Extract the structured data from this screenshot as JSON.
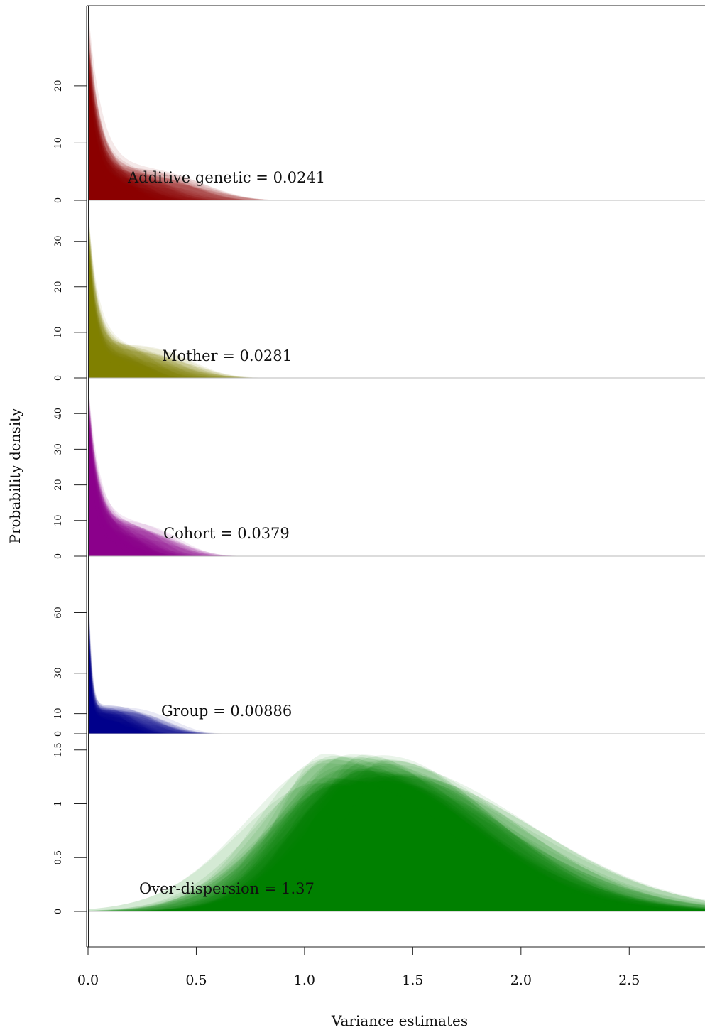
{
  "chart_data": {
    "type": "area",
    "xlabel": "Variance estimates",
    "ylabel": "Probability density",
    "xlim": [
      0,
      2.85
    ],
    "x_ticks": [
      "0.0",
      "0.5",
      "1.0",
      "1.5",
      "2.0",
      "2.5"
    ],
    "x_tick_values": [
      0,
      0.5,
      1.0,
      1.5,
      2.0,
      2.5
    ],
    "grid": false,
    "panels": [
      {
        "label": "Additive genetic = 0.0241",
        "color": "#8b0000",
        "ylim": [
          0,
          34
        ],
        "y_ticks": [
          "0",
          "10",
          "20"
        ],
        "y_tick_values": [
          0,
          10,
          20
        ],
        "density_shape": {
          "peak_density": 28,
          "decay_scale": 0.045,
          "tail_density": 5,
          "tail_extent": 0.5
        }
      },
      {
        "label": "Mother = 0.0281",
        "color": "#808000",
        "ylim": [
          0,
          39
        ],
        "y_ticks": [
          "0",
          "10",
          "20",
          "30"
        ],
        "y_tick_values": [
          0,
          10,
          20,
          30
        ],
        "density_shape": {
          "peak_density": 32,
          "decay_scale": 0.035,
          "tail_density": 6.5,
          "tail_extent": 0.45
        }
      },
      {
        "label": "Cohort = 0.0379",
        "color": "#8b008b",
        "ylim": [
          0,
          50
        ],
        "y_ticks": [
          "0",
          "10",
          "20",
          "30",
          "40"
        ],
        "y_tick_values": [
          0,
          10,
          20,
          30,
          40
        ],
        "density_shape": {
          "peak_density": 42,
          "decay_scale": 0.04,
          "tail_density": 8.5,
          "tail_extent": 0.4
        }
      },
      {
        "label": "Group = 0.00886",
        "color": "#00008b",
        "ylim": [
          0,
          88
        ],
        "y_ticks": [
          "0",
          "10",
          "30",
          "60"
        ],
        "y_tick_values": [
          0,
          10,
          30,
          60
        ],
        "density_shape": {
          "peak_density": 75,
          "decay_scale": 0.012,
          "tail_density": 12,
          "tail_extent": 0.35
        }
      },
      {
        "label": "Over-dispersion = 1.37",
        "color": "#008000",
        "ylim": [
          -0.33,
          1.65
        ],
        "y_ticks": [
          "0",
          "0.5",
          "1",
          "1.5"
        ],
        "y_tick_values": [
          0,
          0.5,
          1,
          1.5
        ],
        "density_shape": {
          "mode": 1.3,
          "peak_density": 1.32,
          "spread_left": 0.3,
          "spread_right": 0.55
        }
      }
    ]
  }
}
